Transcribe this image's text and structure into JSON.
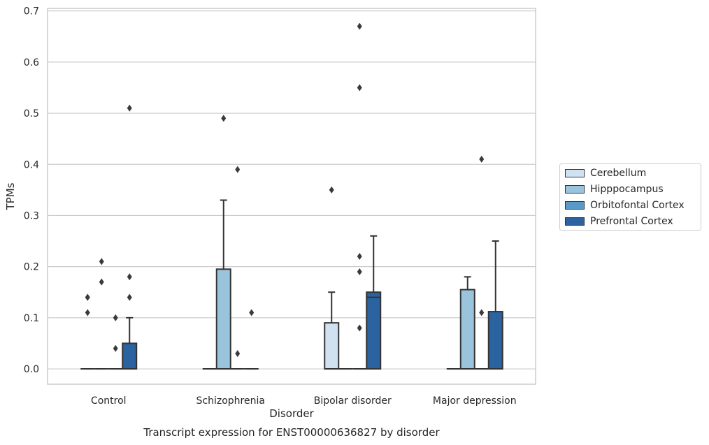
{
  "chart_data": {
    "type": "box",
    "title": "",
    "caption": "Transcript expression for ENST00000636827 by disorder",
    "xlabel": "Disorder",
    "ylabel": "TPMs",
    "ylim": [
      -0.03,
      0.705
    ],
    "yticks": [
      "0.0",
      "0.1",
      "0.2",
      "0.3",
      "0.4",
      "0.5",
      "0.6",
      "0.7"
    ],
    "grid": true,
    "legend_position": "right",
    "categories": [
      "Control",
      "Schizophrenia",
      "Bipolar disorder",
      "Major depression"
    ],
    "series": [
      {
        "name": "Cerebellum",
        "color": "#d0e1f2",
        "boxes": [
          {
            "q1": 0,
            "median": 0,
            "q3": 0,
            "whisker_low": 0,
            "whisker_high": 0,
            "outliers": [
              0.11,
              0.14,
              0.14
            ]
          },
          {
            "q1": 0,
            "median": 0,
            "q3": 0,
            "whisker_low": 0,
            "whisker_high": 0,
            "outliers": []
          },
          {
            "q1": 0,
            "median": 0,
            "q3": 0.09,
            "whisker_low": 0,
            "whisker_high": 0.15,
            "outliers": [
              0.35
            ]
          },
          {
            "q1": 0,
            "median": 0,
            "q3": 0,
            "whisker_low": 0,
            "whisker_high": 0,
            "outliers": []
          }
        ]
      },
      {
        "name": "Hipppocampus",
        "color": "#9ac3dc",
        "boxes": [
          {
            "q1": 0,
            "median": 0,
            "q3": 0,
            "whisker_low": 0,
            "whisker_high": 0,
            "outliers": [
              0.17,
              0.21
            ]
          },
          {
            "q1": 0,
            "median": 0,
            "q3": 0.195,
            "whisker_low": 0,
            "whisker_high": 0.33,
            "outliers": [
              0.49
            ]
          },
          {
            "q1": 0,
            "median": 0,
            "q3": 0,
            "whisker_low": 0,
            "whisker_high": 0,
            "outliers": []
          },
          {
            "q1": 0,
            "median": 0,
            "q3": 0.155,
            "whisker_low": 0,
            "whisker_high": 0.18,
            "outliers": []
          }
        ]
      },
      {
        "name": "Orbitofontal Cortex",
        "color": "#5a9ac8",
        "boxes": [
          {
            "q1": 0,
            "median": 0,
            "q3": 0,
            "whisker_low": 0,
            "whisker_high": 0,
            "outliers": [
              0.04,
              0.1
            ]
          },
          {
            "q1": 0,
            "median": 0,
            "q3": 0,
            "whisker_low": 0,
            "whisker_high": 0,
            "outliers": [
              0.03,
              0.39
            ]
          },
          {
            "q1": 0,
            "median": 0,
            "q3": 0,
            "whisker_low": 0,
            "whisker_high": 0,
            "outliers": [
              0.19,
              0.22,
              0.55,
              0.67
            ]
          },
          {
            "q1": 0,
            "median": 0,
            "q3": 0,
            "whisker_low": 0,
            "whisker_high": 0,
            "outliers": [
              0.11,
              0.41
            ]
          }
        ]
      },
      {
        "name": "Prefrontal Cortex",
        "color": "#2a63a0",
        "boxes": [
          {
            "q1": 0,
            "median": 0,
            "q3": 0.05,
            "whisker_low": 0,
            "whisker_high": 0.1,
            "outliers": [
              0.14,
              0.18,
              0.51
            ]
          },
          {
            "q1": 0,
            "median": 0,
            "q3": 0,
            "whisker_low": 0,
            "whisker_high": 0,
            "outliers": [
              0.11
            ]
          },
          {
            "q1": 0,
            "median": 0.14,
            "q3": 0.15,
            "whisker_low": 0,
            "whisker_high": 0.26,
            "outliers": []
          },
          {
            "q1": 0,
            "median": 0,
            "q3": 0.112,
            "whisker_low": 0,
            "whisker_high": 0.25,
            "outliers": []
          }
        ]
      }
    ],
    "extra_outliers": [
      {
        "category": 2,
        "series": 2,
        "value": 0.08
      }
    ]
  }
}
